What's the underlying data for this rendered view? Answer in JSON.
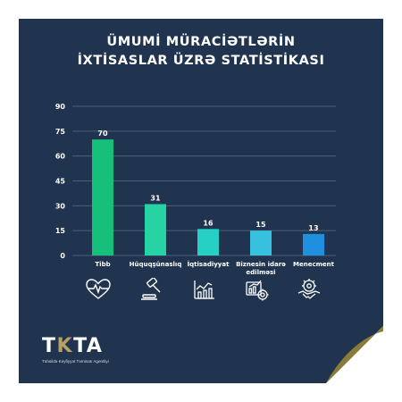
{
  "title_lines": [
    "ÜMUMİ MÜRACİƏTLƏRİN",
    "İXTİSASLAR ÜZRƏ STATİSTİKASI"
  ],
  "chart_data": {
    "type": "bar",
    "categories": [
      "Tibb",
      "Hüquqşünaslıq",
      "İqtisadiyyat",
      "Biznesin idarə edilməsi",
      "Menecment"
    ],
    "category_lines": [
      [
        "Tibb"
      ],
      [
        "Hüquqşünaslıq"
      ],
      [
        "İqtisadiyyat"
      ],
      [
        "Biznesin idarə",
        "edilməsi"
      ],
      [
        "Menecment"
      ]
    ],
    "values": [
      70,
      31,
      16,
      15,
      13
    ],
    "colors": [
      "#17c07a",
      "#26d3a2",
      "#26d0c2",
      "#38c1df",
      "#1f8fdf"
    ],
    "ylim": [
      0,
      90
    ],
    "yticks": [
      0,
      15,
      30,
      45,
      60,
      75,
      90
    ],
    "grid": true,
    "xlabel": "",
    "ylabel": ""
  },
  "icons": [
    "heart-pulse-icon",
    "gavel-icon",
    "growth-chart-icon",
    "business-management-icon",
    "handshake-gear-icon"
  ],
  "logo": {
    "text_start": "T",
    "text_accent": "K",
    "text_end": "TA",
    "subtitle": "Təhsildə Keyfiyyət Təminatı Agentliyi"
  },
  "colors": {
    "background": "#20344f",
    "accent_gold": "#8c7a3a",
    "grid": "#4c5f79"
  }
}
